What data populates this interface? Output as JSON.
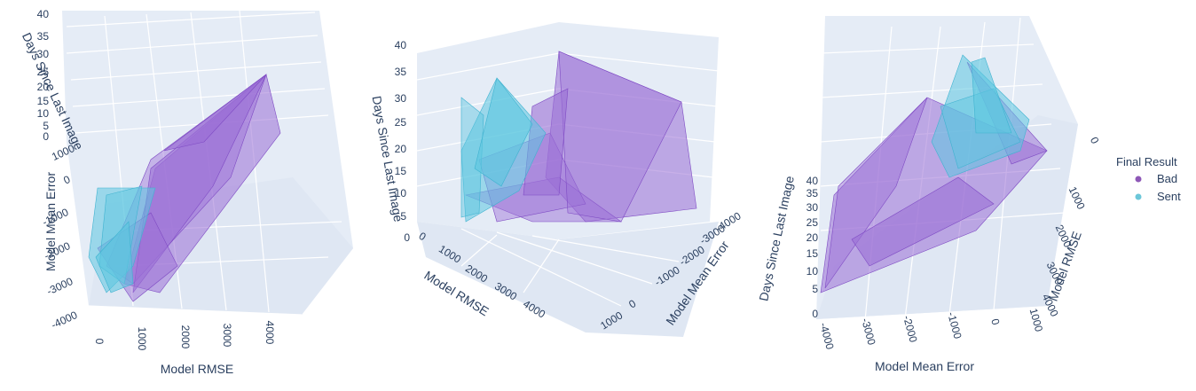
{
  "chart_data": {
    "type": "scatter",
    "subtype": "3d-mesh",
    "legend": {
      "title": "Final Result",
      "placement": "right",
      "entries": [
        {
          "name": "Bad",
          "color": "#8e58b7"
        },
        {
          "name": "Sent",
          "color": "#6cc7d9"
        }
      ]
    },
    "series": [
      {
        "name": "Bad",
        "color": "#8e58b7",
        "fill": "#9b6fd6",
        "points": [
          [
            4100,
            -4000,
            38
          ],
          [
            3200,
            -3100,
            30
          ],
          [
            2500,
            -2400,
            22
          ],
          [
            2000,
            -1800,
            18
          ],
          [
            1500,
            -1300,
            14
          ],
          [
            1100,
            -900,
            10
          ],
          [
            800,
            -600,
            7
          ],
          [
            600,
            -300,
            5
          ],
          [
            900,
            200,
            3
          ],
          [
            1300,
            600,
            2
          ]
        ]
      },
      {
        "name": "Sent",
        "color": "#6cc7d9",
        "fill": "#5cc6e0",
        "points": [
          [
            300,
            -2000,
            35
          ],
          [
            500,
            -1500,
            28
          ],
          [
            700,
            -1000,
            20
          ],
          [
            400,
            -600,
            15
          ],
          [
            600,
            -200,
            10
          ],
          [
            800,
            100,
            6
          ],
          [
            350,
            -1200,
            25
          ]
        ]
      }
    ],
    "axes": {
      "x": {
        "label": "Model RMSE",
        "ticks": [
          "0",
          "1000",
          "2000",
          "3000",
          "4000"
        ],
        "range": [
          0,
          4200
        ]
      },
      "y": {
        "label": "Model Mean Error",
        "ticks": [
          "-4000",
          "-3000",
          "-2000",
          "-1000",
          "0",
          "1000"
        ],
        "range": [
          -4200,
          1000
        ]
      },
      "z": {
        "label": "Days Since Last Image",
        "ticks": [
          "0",
          "5",
          "10",
          "15",
          "20",
          "25",
          "30",
          "35",
          "40"
        ],
        "range": [
          0,
          40
        ]
      }
    },
    "panels": [
      {
        "view": "left",
        "x_ticks": [
          "0",
          "1000",
          "2000",
          "3000",
          "4000"
        ],
        "x_label": "Model RMSE",
        "y_ticks": [
          "-4000",
          "-3000",
          "-2000",
          "-1000",
          "0",
          "1000"
        ],
        "y_label": "Model Mean Error",
        "z_ticks": [
          "40",
          "35",
          "30",
          "25",
          "20",
          "15",
          "10",
          "5",
          "0"
        ],
        "z_label": "Days Since Last Image"
      },
      {
        "view": "middle",
        "x_ticks": [
          "0",
          "1000",
          "2000",
          "3000",
          "4000"
        ],
        "x_label": "Model RMSE",
        "y_ticks": [
          "-4000",
          "-3000",
          "-2000",
          "-1000",
          "0",
          "1000"
        ],
        "y_label": "Model Mean Error",
        "z_ticks": [
          "40",
          "35",
          "30",
          "25",
          "20",
          "15",
          "10",
          "5",
          "0"
        ],
        "z_label": "Days Since Last Image"
      },
      {
        "view": "right",
        "x_ticks": [
          "0",
          "1000",
          "2000",
          "3000",
          "4000"
        ],
        "x_label": "Model RMSE",
        "y_ticks": [
          "-4000",
          "-3000",
          "-2000",
          "-1000",
          "0",
          "1000"
        ],
        "y_label": "Model Mean Error",
        "z_ticks": [
          "40",
          "35",
          "30",
          "25",
          "20",
          "15",
          "10",
          "5",
          "0"
        ],
        "z_label": "Days Since Last Image"
      }
    ],
    "grid": true
  }
}
